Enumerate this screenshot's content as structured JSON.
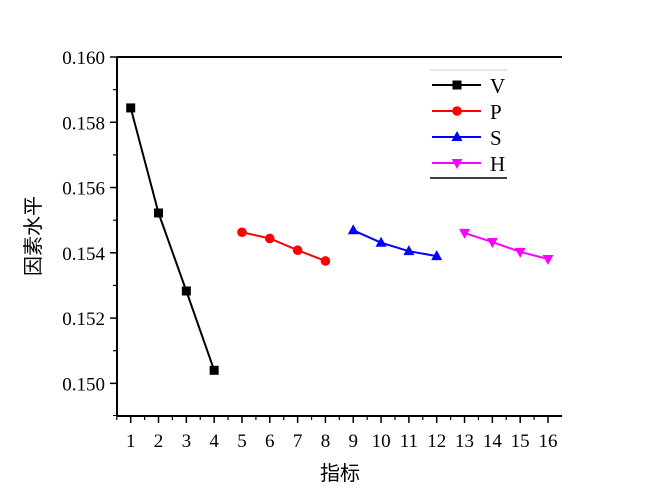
{
  "chart_data": {
    "type": "line",
    "title": "",
    "xlabel": "指标",
    "ylabel": "因素水平",
    "xlim": [
      0.5,
      16.5
    ],
    "ylim": [
      0.149,
      0.16
    ],
    "xticks": [
      1,
      2,
      3,
      4,
      5,
      6,
      7,
      8,
      9,
      10,
      11,
      12,
      13,
      14,
      15,
      16
    ],
    "yticks": [
      "0.150",
      "0.152",
      "0.154",
      "0.156",
      "0.158",
      "0.160"
    ],
    "legend_position": "top-right",
    "series": [
      {
        "name": "V",
        "color": "#000000",
        "marker": "square",
        "x": [
          1,
          2,
          3,
          4
        ],
        "y": [
          0.15844,
          0.15522,
          0.15283,
          0.1504
        ]
      },
      {
        "name": "P",
        "color": "#ff0000",
        "marker": "circle",
        "x": [
          5,
          6,
          7,
          8
        ],
        "y": [
          0.15463,
          0.15444,
          0.15408,
          0.15375
        ]
      },
      {
        "name": "S",
        "color": "#0000ff",
        "marker": "triangle-up",
        "x": [
          9,
          10,
          11,
          12
        ],
        "y": [
          0.15469,
          0.15431,
          0.15405,
          0.1539
        ]
      },
      {
        "name": "H",
        "color": "#ff00ff",
        "marker": "triangle-down",
        "x": [
          13,
          14,
          15,
          16
        ],
        "y": [
          0.15461,
          0.15433,
          0.15403,
          0.15381
        ]
      }
    ]
  }
}
